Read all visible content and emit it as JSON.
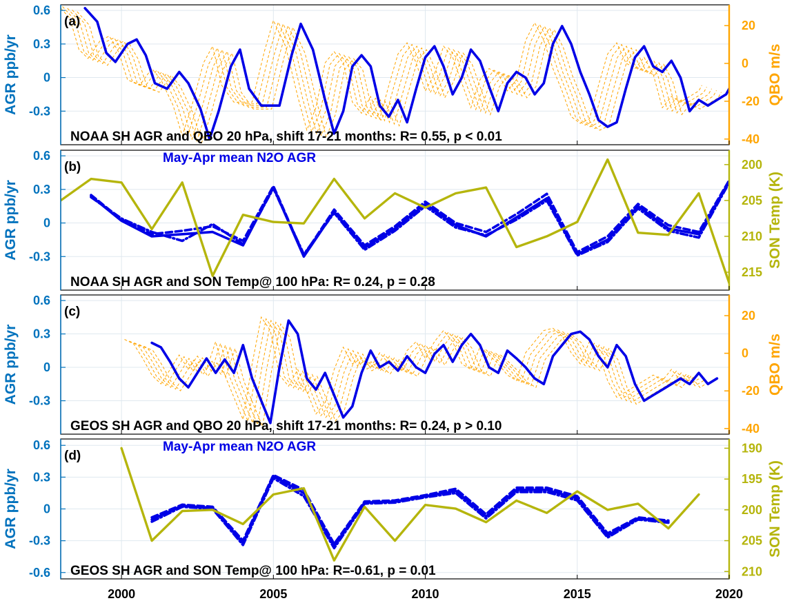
{
  "colors": {
    "agr": "#0000e6",
    "left_axis": "#0072bd",
    "qbo": "#ffa500",
    "temp": "#b5b50c",
    "grid": "#dfe8ef",
    "frame": "#000000"
  },
  "x_axis": {
    "ticks": [
      2000,
      2005,
      2010,
      2015,
      2020
    ],
    "xlim": [
      1998,
      2020
    ]
  },
  "chart_data": [
    {
      "panel": "(a)",
      "type": "line",
      "left_axis": {
        "label": "AGR ppb/yr",
        "ticks": [
          "0.6",
          "0.3",
          "0",
          "-0.3"
        ],
        "tick_values": [
          0.6,
          0.3,
          0,
          -0.3
        ],
        "ylim": [
          -0.6,
          0.65
        ]
      },
      "right_axis": {
        "label": "QBO m/s",
        "ticks": [
          "20",
          "0",
          "-20",
          "-40"
        ],
        "tick_values": [
          20,
          0,
          -20,
          -40
        ],
        "ylim": [
          -43,
          31
        ]
      },
      "annotation": "NOAA SH AGR and QBO 20 hPa, shift 17-21 months: R= 0.55, p < 0.01",
      "legend_note": "",
      "series": [
        {
          "axis": "left",
          "style": "solid",
          "x": [
            1998.8,
            1999.2,
            1999.5,
            1999.8,
            2000.2,
            2000.5,
            2000.8,
            2001.1,
            2001.5,
            2001.9,
            2002.2,
            2002.6,
            2002.9,
            2003.2,
            2003.6,
            2003.9,
            2004.2,
            2004.6,
            2004.9,
            2005.2,
            2005.6,
            2005.9,
            2006.3,
            2006.7,
            2007.0,
            2007.3,
            2007.6,
            2007.9,
            2008.2,
            2008.5,
            2008.8,
            2009.1,
            2009.4,
            2009.7,
            2010.0,
            2010.3,
            2010.6,
            2010.9,
            2011.2,
            2011.5,
            2011.8,
            2012.1,
            2012.4,
            2012.7,
            2013.0,
            2013.3,
            2013.6,
            2013.9,
            2014.2,
            2014.5,
            2014.8,
            2015.1,
            2015.4,
            2015.7,
            2016.0,
            2016.3,
            2016.6,
            2016.9,
            2017.2,
            2017.5,
            2017.8,
            2018.1,
            2018.4,
            2018.7,
            2019.0,
            2019.3,
            2019.6,
            2019.9,
            2020.0
          ],
          "y": [
            0.62,
            0.5,
            0.22,
            0.14,
            0.3,
            0.34,
            0.2,
            -0.05,
            -0.1,
            0.05,
            -0.05,
            -0.28,
            -0.55,
            -0.3,
            0.1,
            0.25,
            -0.1,
            -0.25,
            -0.25,
            -0.25,
            0.2,
            0.48,
            0.25,
            -0.2,
            -0.5,
            -0.3,
            0.1,
            0.2,
            0.1,
            -0.25,
            -0.35,
            -0.2,
            -0.4,
            -0.1,
            0.18,
            0.28,
            0.1,
            -0.15,
            0.0,
            0.25,
            0.15,
            -0.08,
            -0.3,
            -0.05,
            0.05,
            0.0,
            -0.15,
            -0.05,
            0.3,
            0.46,
            0.3,
            0.05,
            -0.15,
            -0.38,
            -0.44,
            -0.4,
            -0.1,
            0.18,
            0.28,
            0.1,
            0.05,
            0.15,
            0.0,
            -0.3,
            -0.2,
            -0.25,
            -0.2,
            -0.15,
            -0.1
          ]
        }
      ]
    },
    {
      "panel": "(b)",
      "type": "line",
      "left_axis": {
        "label": "AGR ppb/yr",
        "ticks": [
          "0.6",
          "0.3",
          "0",
          "-0.3"
        ],
        "tick_values": [
          0.6,
          0.3,
          0,
          -0.3
        ],
        "ylim": [
          -0.6,
          0.65
        ]
      },
      "right_axis": {
        "label": "SON Temp (K)",
        "ticks": [
          "200",
          "205",
          "210",
          "215"
        ],
        "tick_values": [
          200,
          205,
          210,
          215
        ],
        "ylim": [
          198,
          217.5
        ],
        "reversed": true
      },
      "annotation": "NOAA SH AGR and SON Temp@ 100 hPa: R= 0.24, p = 0.28",
      "legend_note": "May-Apr mean N2O AGR",
      "series": [
        {
          "axis": "left",
          "style": "solid",
          "x": [
            1999,
            2000,
            2001,
            2002,
            2003,
            2004,
            2005,
            2006,
            2007,
            2008,
            2009,
            2010,
            2011,
            2012,
            2013,
            2014,
            2015,
            2016,
            2017,
            2018,
            2019,
            2020
          ],
          "y": [
            0.24,
            0.02,
            -0.12,
            -0.1,
            -0.08,
            -0.2,
            0.32,
            -0.3,
            0.1,
            -0.22,
            -0.05,
            0.17,
            -0.02,
            -0.12,
            0.05,
            0.22,
            -0.28,
            -0.15,
            0.15,
            -0.05,
            -0.1,
            0.37
          ]
        },
        {
          "axis": "left",
          "style": "dashed",
          "x": [
            1999,
            2000,
            2001,
            2002,
            2003,
            2004,
            2005,
            2006,
            2007,
            2008,
            2009,
            2010,
            2011,
            2012,
            2013,
            2014,
            2015,
            2016,
            2017,
            2018,
            2019,
            2020
          ],
          "y": [
            0.25,
            0.03,
            -0.1,
            -0.07,
            -0.03,
            -0.16,
            0.33,
            -0.29,
            0.12,
            -0.2,
            -0.03,
            0.19,
            0.0,
            -0.08,
            0.08,
            0.26,
            -0.26,
            -0.12,
            0.17,
            -0.02,
            -0.08,
            0.38
          ]
        },
        {
          "axis": "left",
          "style": "dashdot",
          "x": [
            1999,
            2000,
            2001,
            2002,
            2003,
            2004,
            2005,
            2006,
            2007,
            2008,
            2009,
            2010,
            2011,
            2012,
            2013,
            2014,
            2015,
            2016,
            2017,
            2018,
            2019,
            2020
          ],
          "y": [
            0.23,
            0.04,
            -0.08,
            -0.16,
            -0.01,
            -0.19,
            0.31,
            -0.28,
            0.09,
            -0.24,
            -0.07,
            0.15,
            -0.04,
            -0.11,
            0.03,
            0.2,
            -0.29,
            -0.17,
            0.13,
            -0.07,
            -0.13,
            0.36
          ]
        },
        {
          "axis": "right",
          "style": "solid",
          "x": [
            1998,
            1999,
            2000,
            2001,
            2002,
            2003,
            2004,
            2005,
            2006,
            2007,
            2008,
            2009,
            2010,
            2011,
            2012,
            2013,
            2014,
            2015,
            2016,
            2017,
            2018,
            2019,
            2020
          ],
          "y": [
            205,
            202,
            202.5,
            209,
            202.5,
            215.5,
            207,
            208,
            208.2,
            202,
            207.5,
            204,
            206,
            204,
            203.2,
            211.5,
            210,
            208,
            199.3,
            209.5,
            209.8,
            204,
            216.5
          ]
        }
      ]
    },
    {
      "panel": "(c)",
      "type": "line",
      "left_axis": {
        "label": "AGR ppb/yr",
        "ticks": [
          "0.6",
          "0.3",
          "0",
          "-0.3"
        ],
        "tick_values": [
          0.6,
          0.3,
          0,
          -0.3
        ],
        "ylim": [
          -0.6,
          0.65
        ]
      },
      "right_axis": {
        "label": "QBO m/s",
        "ticks": [
          "20",
          "0",
          "-20",
          "-40"
        ],
        "tick_values": [
          20,
          0,
          -20,
          -40
        ],
        "ylim": [
          -43,
          31
        ]
      },
      "annotation": "GEOS SH AGR and QBO 20 hPa, shift 17-21 months: R= 0.24, p > 0.10",
      "legend_note": "",
      "series": [
        {
          "axis": "left",
          "style": "solid",
          "x": [
            2001.0,
            2001.3,
            2001.6,
            2001.9,
            2002.2,
            2002.5,
            2002.8,
            2003.1,
            2003.4,
            2003.7,
            2004.0,
            2004.3,
            2004.6,
            2004.9,
            2005.2,
            2005.5,
            2005.8,
            2006.1,
            2006.4,
            2006.7,
            2007.0,
            2007.3,
            2007.6,
            2007.9,
            2008.2,
            2008.5,
            2008.8,
            2009.1,
            2009.4,
            2009.7,
            2010.0,
            2010.3,
            2010.6,
            2010.9,
            2011.2,
            2011.5,
            2011.8,
            2012.1,
            2012.4,
            2012.7,
            2013.0,
            2013.3,
            2013.6,
            2013.9,
            2014.2,
            2014.5,
            2014.8,
            2015.1,
            2015.4,
            2015.7,
            2016.0,
            2016.3,
            2016.6,
            2016.9,
            2017.2,
            2017.5,
            2017.8,
            2018.1,
            2018.4,
            2018.7,
            2019.0,
            2019.3,
            2019.6
          ],
          "y": [
            0.22,
            0.18,
            0.05,
            -0.1,
            -0.18,
            -0.05,
            0.08,
            -0.05,
            0.07,
            -0.05,
            0.2,
            -0.1,
            -0.3,
            -0.5,
            0.0,
            0.42,
            0.3,
            -0.1,
            -0.2,
            -0.05,
            -0.25,
            -0.45,
            -0.35,
            -0.05,
            0.15,
            0.0,
            0.05,
            -0.03,
            0.1,
            0.0,
            -0.05,
            0.12,
            0.2,
            0.05,
            0.2,
            0.3,
            0.2,
            0.0,
            -0.05,
            0.15,
            0.08,
            0.0,
            -0.1,
            -0.15,
            0.1,
            0.2,
            0.3,
            0.32,
            0.25,
            0.1,
            0.0,
            0.2,
            0.1,
            -0.15,
            -0.3,
            -0.25,
            -0.2,
            -0.15,
            -0.1,
            -0.15,
            -0.05,
            -0.15,
            -0.1
          ]
        }
      ]
    },
    {
      "panel": "(d)",
      "type": "line",
      "left_axis": {
        "label": "AGR ppb/yr",
        "ticks": [
          "0.6",
          "0.3",
          "0",
          "-0.3",
          "-0.6"
        ],
        "tick_values": [
          0.6,
          0.3,
          0,
          -0.3,
          -0.6
        ],
        "ylim": [
          -0.66,
          0.66
        ]
      },
      "right_axis": {
        "label": "SON Temp (K)",
        "ticks": [
          "190",
          "195",
          "200",
          "205",
          "210"
        ],
        "tick_values": [
          190,
          195,
          200,
          205,
          210
        ],
        "ylim": [
          188.5,
          211.2
        ],
        "reversed": true
      },
      "annotation": "GEOS SH AGR and SON Temp@ 100 hPa: R=-0.61, p = 0.01",
      "legend_note": "May-Apr mean N2O AGR",
      "series": [
        {
          "axis": "left",
          "style": "solid",
          "x": [
            2001,
            2002,
            2003,
            2004,
            2005,
            2006,
            2007,
            2008,
            2009,
            2010,
            2011,
            2012,
            2013,
            2014,
            2015,
            2016,
            2017,
            2018
          ],
          "y": [
            -0.1,
            0.03,
            0.01,
            -0.32,
            0.31,
            0.15,
            -0.35,
            0.06,
            0.07,
            0.12,
            0.17,
            -0.07,
            0.18,
            0.18,
            0.1,
            -0.25,
            -0.09,
            -0.12
          ]
        },
        {
          "axis": "left",
          "style": "dashed",
          "x": [
            2001,
            2002,
            2003,
            2004,
            2005,
            2006,
            2007,
            2008,
            2009,
            2010,
            2011,
            2012,
            2013,
            2014,
            2015,
            2016,
            2017,
            2018
          ],
          "y": [
            -0.08,
            0.04,
            0.02,
            -0.3,
            0.32,
            0.18,
            -0.33,
            0.07,
            0.08,
            0.13,
            0.19,
            -0.05,
            0.2,
            0.2,
            0.12,
            -0.23,
            -0.08,
            -0.11
          ]
        },
        {
          "axis": "left",
          "style": "dashdot",
          "x": [
            2001,
            2002,
            2003,
            2004,
            2005,
            2006,
            2007,
            2008,
            2009,
            2010,
            2011,
            2012,
            2013,
            2014,
            2015,
            2016,
            2017,
            2018
          ],
          "y": [
            -0.12,
            0.02,
            0.0,
            -0.34,
            0.29,
            0.12,
            -0.37,
            0.05,
            0.06,
            0.11,
            0.15,
            -0.09,
            0.16,
            0.16,
            0.08,
            -0.27,
            -0.1,
            -0.13
          ]
        },
        {
          "axis": "right",
          "style": "solid",
          "x": [
            2000,
            2001,
            2002,
            2003,
            2004,
            2005,
            2006,
            2007,
            2008,
            2009,
            2010,
            2011,
            2012,
            2013,
            2014,
            2015,
            2016,
            2017,
            2018,
            2019
          ],
          "y": [
            190,
            205,
            200.2,
            200,
            202.3,
            197.5,
            196.5,
            208.2,
            199.5,
            205,
            199.2,
            199.8,
            202,
            198.5,
            200.5,
            197,
            200,
            199,
            203,
            197.5
          ]
        }
      ]
    }
  ]
}
